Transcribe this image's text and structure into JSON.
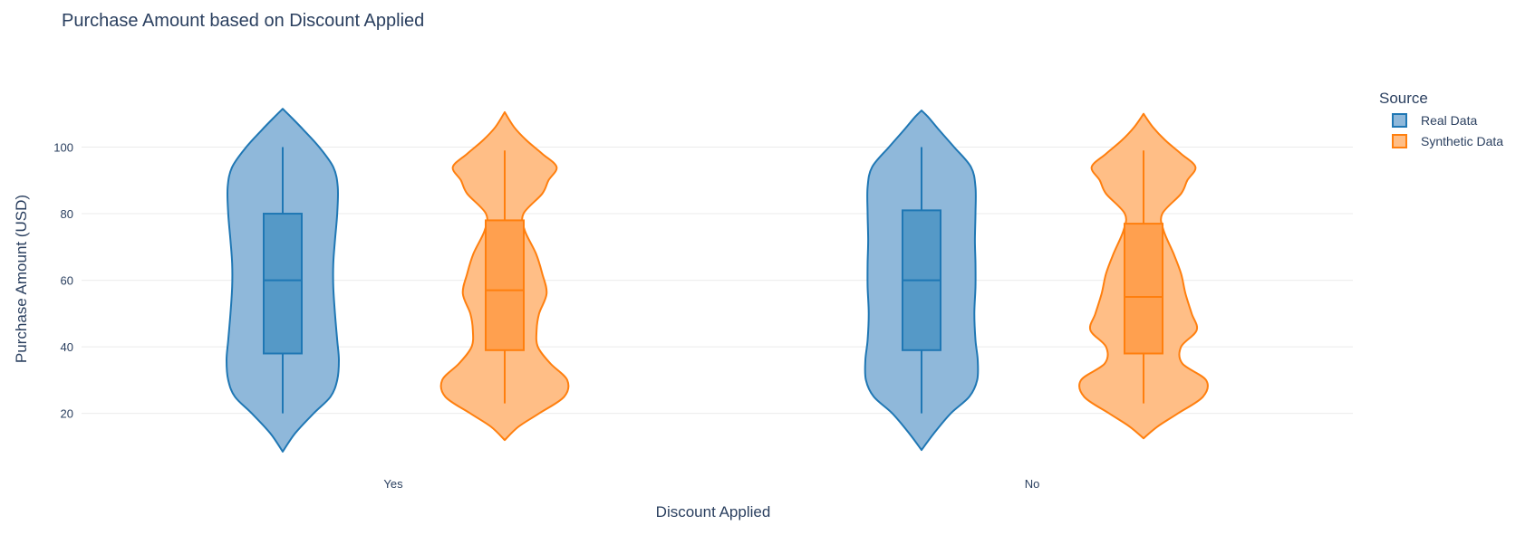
{
  "chart_data": {
    "type": "violin",
    "title": "Purchase Amount based on Discount Applied",
    "xlabel": "Discount Applied",
    "ylabel": "Purchase Amount (USD)",
    "categories": [
      "Yes",
      "No"
    ],
    "ylim": [
      5.5,
      117
    ],
    "yticks": [
      20,
      40,
      60,
      80,
      100
    ],
    "grid": true,
    "legend": {
      "title": "Source",
      "placement": "top-right"
    },
    "series": [
      {
        "name": "Real Data",
        "color": "#1f77b4",
        "fill": "#8fb8da",
        "box_fill": "#5599c7",
        "groups": [
          {
            "category": "Yes",
            "kde_min": 8.5,
            "kde_max": 111.5,
            "min": 20,
            "q1": 38,
            "median": 60,
            "q3": 80,
            "max": 100,
            "density": [
              [
                8.5,
                0
              ],
              [
                14,
                0.22
              ],
              [
                20,
                0.55
              ],
              [
                25,
                0.85
              ],
              [
                30,
                0.97
              ],
              [
                36,
                1.0
              ],
              [
                42,
                0.97
              ],
              [
                50,
                0.93
              ],
              [
                58,
                0.9
              ],
              [
                65,
                0.9
              ],
              [
                72,
                0.93
              ],
              [
                80,
                0.97
              ],
              [
                88,
                0.98
              ],
              [
                94,
                0.9
              ],
              [
                100,
                0.65
              ],
              [
                105,
                0.38
              ],
              [
                109,
                0.15
              ],
              [
                111.5,
                0
              ]
            ]
          },
          {
            "category": "No",
            "kde_min": 9,
            "kde_max": 111,
            "min": 20,
            "q1": 39,
            "median": 60,
            "q3": 81,
            "max": 100,
            "density": [
              [
                9,
                0
              ],
              [
                14,
                0.22
              ],
              [
                20,
                0.52
              ],
              [
                25,
                0.85
              ],
              [
                30,
                0.99
              ],
              [
                36,
                1.0
              ],
              [
                42,
                0.96
              ],
              [
                50,
                0.94
              ],
              [
                58,
                0.96
              ],
              [
                65,
                0.96
              ],
              [
                72,
                0.95
              ],
              [
                80,
                0.96
              ],
              [
                88,
                0.96
              ],
              [
                94,
                0.88
              ],
              [
                100,
                0.58
              ],
              [
                105,
                0.32
              ],
              [
                109,
                0.12
              ],
              [
                111,
                0
              ]
            ]
          }
        ]
      },
      {
        "name": "Synthetic Data",
        "color": "#ff7f0e",
        "fill": "#ffbe86",
        "box_fill": "#ffa04f",
        "groups": [
          {
            "category": "Yes",
            "kde_min": 12,
            "kde_max": 110.5,
            "min": 23,
            "q1": 39,
            "median": 57,
            "q3": 78,
            "max": 99,
            "density": [
              [
                12,
                0
              ],
              [
                16,
                0.22
              ],
              [
                20,
                0.55
              ],
              [
                25,
                0.95
              ],
              [
                30,
                1.0
              ],
              [
                35,
                0.73
              ],
              [
                40,
                0.53
              ],
              [
                45,
                0.51
              ],
              [
                50,
                0.55
              ],
              [
                56,
                0.67
              ],
              [
                62,
                0.6
              ],
              [
                68,
                0.5
              ],
              [
                75,
                0.32
              ],
              [
                80,
                0.3
              ],
              [
                86,
                0.6
              ],
              [
                90,
                0.7
              ],
              [
                94,
                0.83
              ],
              [
                98,
                0.6
              ],
              [
                102,
                0.35
              ],
              [
                106,
                0.15
              ],
              [
                110.5,
                0
              ]
            ]
          },
          {
            "category": "No",
            "kde_min": 12.5,
            "kde_max": 110,
            "min": 23,
            "q1": 38,
            "median": 55,
            "q3": 77,
            "max": 99,
            "density": [
              [
                12.5,
                0
              ],
              [
                16,
                0.22
              ],
              [
                20,
                0.55
              ],
              [
                25,
                0.95
              ],
              [
                30,
                1.0
              ],
              [
                35,
                0.62
              ],
              [
                40,
                0.6
              ],
              [
                45,
                0.85
              ],
              [
                50,
                0.77
              ],
              [
                56,
                0.67
              ],
              [
                62,
                0.6
              ],
              [
                68,
                0.48
              ],
              [
                75,
                0.32
              ],
              [
                80,
                0.3
              ],
              [
                86,
                0.6
              ],
              [
                90,
                0.7
              ],
              [
                94,
                0.83
              ],
              [
                98,
                0.6
              ],
              [
                102,
                0.35
              ],
              [
                106,
                0.15
              ],
              [
                110,
                0
              ]
            ]
          }
        ]
      }
    ]
  }
}
